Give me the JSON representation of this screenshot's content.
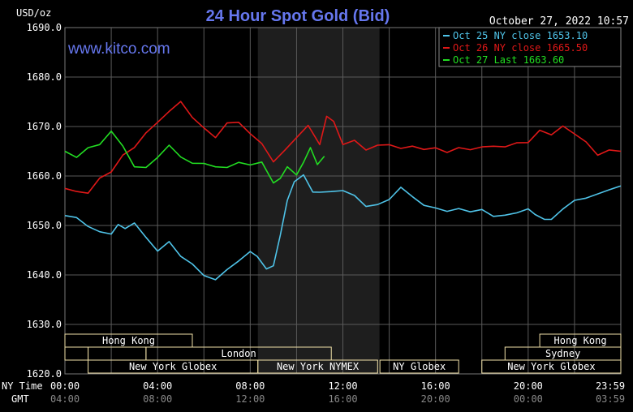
{
  "chart_data": {
    "type": "line",
    "title": "24 Hour Spot Gold (Bid)",
    "ylabel": "USD/oz",
    "timestamp": "October 27, 2022 10:57",
    "watermark": "www.kitco.com",
    "ylim": [
      1620,
      1690
    ],
    "y_ticks": [
      "1690.0",
      "1680.0",
      "1670.0",
      "1660.0",
      "1650.0",
      "1640.0",
      "1630.0",
      "1620.0"
    ],
    "xlim": [
      0,
      24
    ],
    "x_tick_hours": [
      0,
      4,
      8,
      12,
      16,
      20,
      24
    ],
    "ny_time_label": "NY Time",
    "ny_time_ticks": [
      "00:00",
      "04:00",
      "08:00",
      "12:00",
      "16:00",
      "20:00",
      "23:59"
    ],
    "gmt_label": "GMT",
    "gmt_ticks": [
      "04:00",
      "08:00",
      "12:00",
      "16:00",
      "20:00",
      "00:00",
      "03:59"
    ],
    "shaded_region": [
      8.33,
      13.58
    ],
    "legend_placement": "top-right",
    "colors": {
      "background": "#000000",
      "grid": "#5a5a5a",
      "shade": "#1e1e1e",
      "title": "#6677ee",
      "watermark": "#6677ee",
      "text": "#ffffff",
      "session_text": "#ffffff",
      "session_box": "#f0e0a8"
    },
    "sessions": [
      {
        "label": "Hong Kong",
        "start": 0.0,
        "end": 5.5,
        "row": 0
      },
      {
        "label": "Hong Kong",
        "start": 20.5,
        "end": 24.0,
        "row": 0
      },
      {
        "label": "",
        "start": 0.0,
        "end": 1.0,
        "row": 1
      },
      {
        "label": "",
        "start": 1.0,
        "end": 3.5,
        "row": 1
      },
      {
        "label": "London",
        "start": 3.5,
        "end": 11.5,
        "row": 1
      },
      {
        "label": "Sydney",
        "start": 19.0,
        "end": 24.0,
        "row": 1
      },
      {
        "label": "New York Globex",
        "start": 1.0,
        "end": 8.33,
        "row": 2
      },
      {
        "label": "New York NYMEX",
        "start": 8.33,
        "end": 13.5,
        "row": 2
      },
      {
        "label": "NY Globex",
        "start": 13.6,
        "end": 17.0,
        "row": 2
      },
      {
        "label": "New York Globex",
        "start": 18.0,
        "end": 24.0,
        "row": 2
      }
    ],
    "series": [
      {
        "name": "Oct 25 NY close 1653.10",
        "color": "#4fc3e8",
        "x": [
          0.0,
          0.5,
          1.0,
          1.5,
          2.0,
          2.3,
          2.6,
          3.0,
          3.5,
          4.0,
          4.5,
          5.0,
          5.5,
          6.0,
          6.5,
          7.0,
          7.5,
          8.0,
          8.3,
          8.7,
          9.0,
          9.3,
          9.6,
          9.9,
          10.3,
          10.7,
          11.0,
          11.5,
          12.0,
          12.5,
          13.0,
          13.5,
          14.0,
          14.5,
          15.0,
          15.5,
          16.0,
          16.5,
          17.0,
          17.5,
          18.0,
          18.5,
          19.0,
          19.5,
          20.0,
          20.3,
          20.7,
          21.0,
          21.5,
          22.0,
          22.5,
          23.0,
          23.5,
          24.0
        ],
        "values": [
          1652.0,
          1651.5,
          1650.0,
          1648.5,
          1648.5,
          1650.0,
          1649.5,
          1650.5,
          1647.5,
          1645.0,
          1646.5,
          1644.0,
          1642.0,
          1640.0,
          1639.0,
          1641.0,
          1643.0,
          1644.5,
          1644.0,
          1641.0,
          1642.0,
          1648.0,
          1655.0,
          1659.0,
          1660.0,
          1657.0,
          1656.5,
          1657.0,
          1657.0,
          1656.0,
          1654.0,
          1654.0,
          1655.5,
          1657.5,
          1656.0,
          1654.0,
          1653.5,
          1653.0,
          1653.2,
          1653.0,
          1653.0,
          1652.0,
          1652.0,
          1652.5,
          1653.5,
          1652.0,
          1651.5,
          1651.0,
          1653.5,
          1655.0,
          1655.5,
          1656.5,
          1657.0,
          1658.0
        ]
      },
      {
        "name": "Oct 26 NY close 1665.50",
        "color": "#e01818",
        "x": [
          0.0,
          0.5,
          1.0,
          1.5,
          2.0,
          2.5,
          3.0,
          3.5,
          4.0,
          4.5,
          5.0,
          5.5,
          6.0,
          6.5,
          7.0,
          7.5,
          8.0,
          8.5,
          9.0,
          9.5,
          10.0,
          10.5,
          11.0,
          11.3,
          11.6,
          12.0,
          12.5,
          13.0,
          13.5,
          14.0,
          14.5,
          15.0,
          15.5,
          16.0,
          16.5,
          17.0,
          17.5,
          18.0,
          18.5,
          19.0,
          19.5,
          20.0,
          20.5,
          21.0,
          21.5,
          22.0,
          22.5,
          23.0,
          23.5,
          24.0
        ],
        "values": [
          1657.5,
          1657.0,
          1656.5,
          1659.5,
          1661.0,
          1664.0,
          1666.0,
          1668.5,
          1671.0,
          1673.0,
          1675.0,
          1672.0,
          1669.5,
          1668.0,
          1670.5,
          1671.0,
          1668.5,
          1666.5,
          1663.0,
          1665.0,
          1668.0,
          1670.0,
          1666.5,
          1672.0,
          1671.0,
          1666.5,
          1667.0,
          1665.5,
          1666.0,
          1666.5,
          1665.5,
          1666.0,
          1665.5,
          1665.5,
          1665.0,
          1665.5,
          1665.5,
          1665.8,
          1666.0,
          1666.0,
          1666.5,
          1667.0,
          1669.0,
          1668.5,
          1670.0,
          1668.5,
          1667.0,
          1664.0,
          1665.5,
          1665.0
        ]
      },
      {
        "name": "Oct 27 Last 1663.60",
        "color": "#22dd22",
        "x": [
          0.0,
          0.5,
          1.0,
          1.5,
          2.0,
          2.5,
          3.0,
          3.5,
          4.0,
          4.5,
          5.0,
          5.5,
          6.0,
          6.5,
          7.0,
          7.5,
          8.0,
          8.5,
          9.0,
          9.3,
          9.6,
          10.0,
          10.3,
          10.6,
          10.9,
          11.2
        ],
        "values": [
          1665.0,
          1664.0,
          1665.5,
          1666.5,
          1669.0,
          1666.0,
          1662.0,
          1661.5,
          1664.0,
          1666.0,
          1664.0,
          1662.5,
          1662.5,
          1662.0,
          1661.5,
          1663.0,
          1662.0,
          1663.0,
          1658.5,
          1659.5,
          1662.0,
          1660.0,
          1663.0,
          1665.5,
          1662.5,
          1664.0
        ]
      }
    ]
  }
}
